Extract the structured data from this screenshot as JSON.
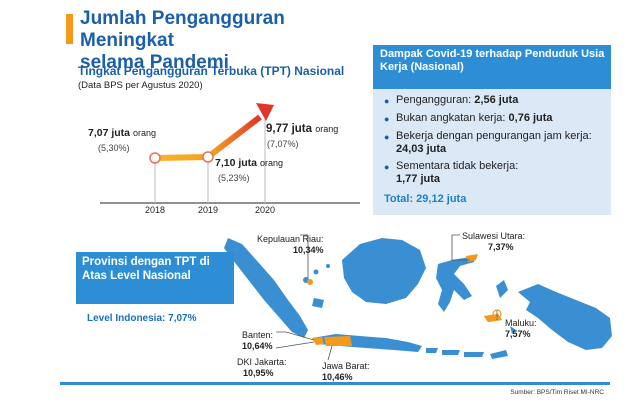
{
  "header": {
    "title_line1": "Jumlah Pengangguran Meningkat",
    "title_line2": "selama Pandemi"
  },
  "tpt": {
    "title": "Tingkat Pengangguran Terbuka (TPT) Nasional",
    "subtitle": "(Data BPS per Agustus 2020)",
    "unit": "orang",
    "points": [
      {
        "year": "2018",
        "value": "7,07 juta",
        "pct": "(5,30%)",
        "level": 5.3
      },
      {
        "year": "2019",
        "value": "7,10 juta",
        "pct": "(5,23%)",
        "level": 5.23
      },
      {
        "year": "2020",
        "value": "9,77 juta",
        "pct": "(7,07%)",
        "level": 7.07
      }
    ]
  },
  "impact": {
    "title": "Dampak Covid-19 terhadap Penduduk Usia Kerja (Nasional)",
    "items": [
      {
        "label": "Pengangguran: ",
        "value": "2,56 juta"
      },
      {
        "label": "Bukan angkatan kerja: ",
        "value": "0,76 juta"
      },
      {
        "label": "Bekerja dengan pengurangan jam kerja: ",
        "value": "24,03 juta"
      },
      {
        "label": "Sementara tidak bekerja: ",
        "value": "1,77 juta"
      }
    ],
    "total": "Total: 29,12 juta"
  },
  "provinces": {
    "title": "Provinsi dengan TPT di Atas Level Nasional",
    "level": "Level Indonesia: 7,07%",
    "labels": [
      {
        "name": "Kepulauan Riau:",
        "value": "10,34%"
      },
      {
        "name": "Sulawesi Utara:",
        "value": "7,37%"
      },
      {
        "name": "Maluku:",
        "value": "7,57%"
      },
      {
        "name": "Banten:",
        "value": "10,64%"
      },
      {
        "name": "DKI Jakarta:",
        "value": "10,95%"
      },
      {
        "name": "Jawa Barat:",
        "value": "10,46%"
      }
    ]
  },
  "colors": {
    "blue": "#2d8ed6",
    "title_blue": "#1b5fa8",
    "orange": "#f39a1c",
    "red": "#e0352b",
    "map_blue": "#3a8fd2"
  },
  "source": "Sumber: BPS/Tim Riset MI-NRC"
}
